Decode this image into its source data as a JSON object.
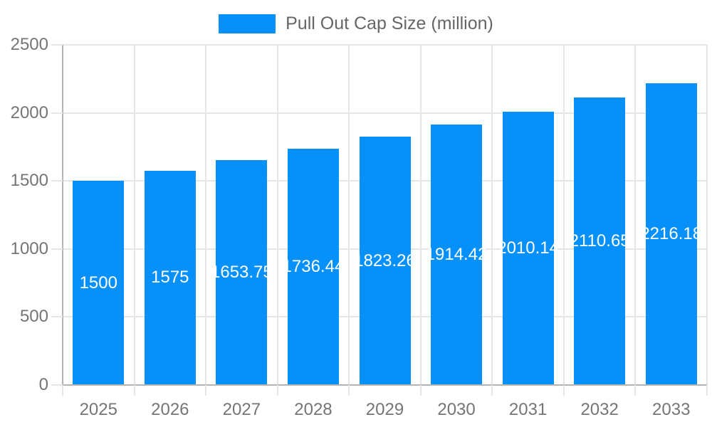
{
  "chart_data": {
    "type": "bar",
    "title": "Pull Out Cap Size (million)",
    "legend": {
      "position": "top",
      "entries": [
        {
          "label": "Pull Out Cap Size (million)"
        }
      ]
    },
    "categories": [
      "2025",
      "2026",
      "2027",
      "2028",
      "2029",
      "2030",
      "2031",
      "2032",
      "2033"
    ],
    "series": [
      {
        "name": "Pull Out Cap Size (million)",
        "values": [
          1500,
          1575,
          1653.75,
          1736.44,
          1823.26,
          1914.42,
          2010.14,
          2110.65,
          2216.18
        ],
        "labels": [
          "1500",
          "1575",
          "1653.75",
          "1736.44",
          "1823.26",
          "1914.42",
          "2010.14",
          "2110.65",
          "2216.18"
        ]
      }
    ],
    "xlabel": "",
    "ylabel": "",
    "ylim": [
      0,
      2500
    ],
    "ytick_step": 500,
    "ytick_labels": [
      "0",
      "500",
      "1000",
      "1500",
      "2000",
      "2500"
    ],
    "grid": true,
    "bar_label_position": "center",
    "colors": {
      "bar": "#0590FA",
      "gridline": "#e6e6e6",
      "axis_line": "#b3b3b3",
      "tick_label": "#757575",
      "legend_text": "#666666",
      "bar_label": "#ffffff",
      "background": "#ffffff"
    }
  }
}
